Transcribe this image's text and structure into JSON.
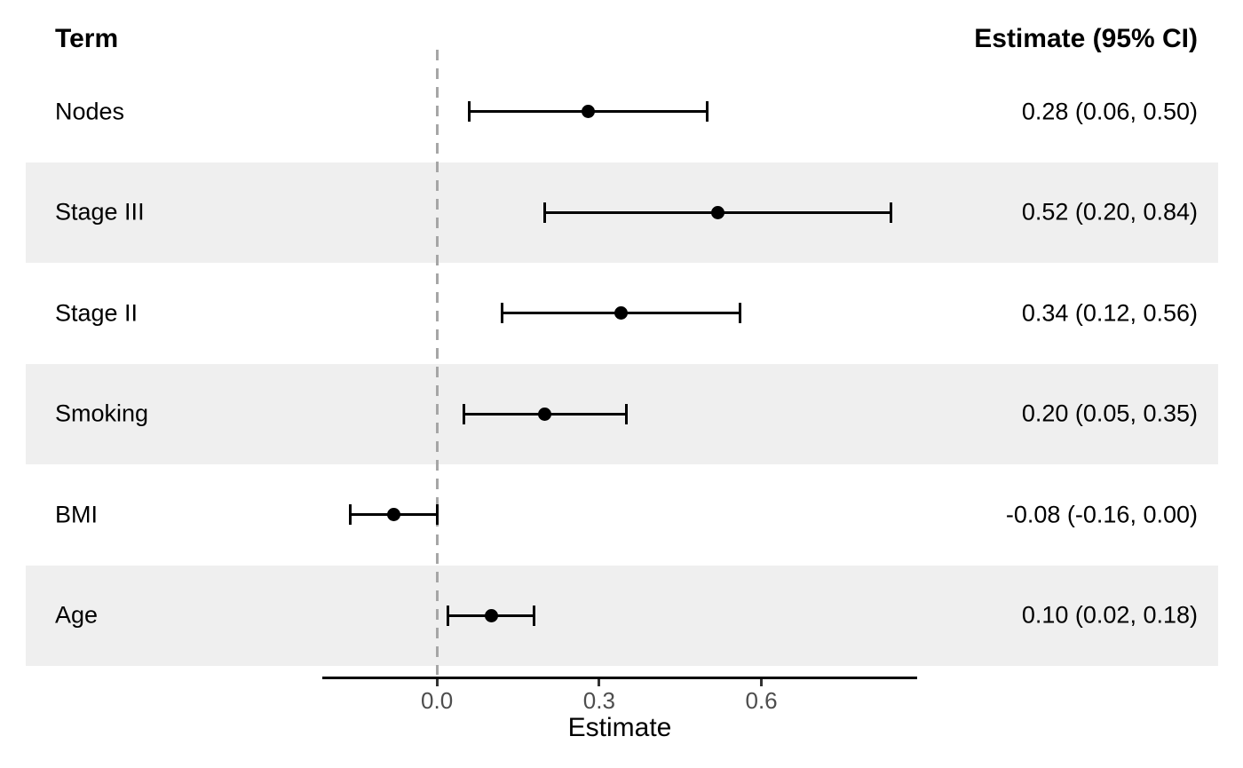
{
  "chart_data": {
    "type": "scatter",
    "variant": "forest-plot",
    "title": "",
    "columns": {
      "term_header": "Term",
      "estimate_header": "Estimate (95% CI)"
    },
    "rows": [
      {
        "term": "Nodes",
        "estimate": 0.28,
        "ci_low": 0.06,
        "ci_high": 0.5,
        "label": "0.28 (0.06, 0.50)",
        "shaded": false
      },
      {
        "term": "Stage III",
        "estimate": 0.52,
        "ci_low": 0.2,
        "ci_high": 0.84,
        "label": "0.52 (0.20, 0.84)",
        "shaded": true
      },
      {
        "term": "Stage II",
        "estimate": 0.34,
        "ci_low": 0.12,
        "ci_high": 0.56,
        "label": "0.34 (0.12, 0.56)",
        "shaded": false
      },
      {
        "term": "Smoking",
        "estimate": 0.2,
        "ci_low": 0.05,
        "ci_high": 0.35,
        "label": "0.20 (0.05, 0.35)",
        "shaded": true
      },
      {
        "term": "BMI",
        "estimate": -0.08,
        "ci_low": -0.16,
        "ci_high": 0.0,
        "label": "-0.08 (-0.16, 0.00)",
        "shaded": false
      },
      {
        "term": "Age",
        "estimate": 0.1,
        "ci_low": 0.02,
        "ci_high": 0.18,
        "label": "0.10 (0.02, 0.18)",
        "shaded": true
      }
    ],
    "xlabel": "Estimate",
    "x_ticks": [
      {
        "value": 0.0,
        "label": "0.0"
      },
      {
        "value": 0.3,
        "label": "0.3"
      },
      {
        "value": 0.6,
        "label": "0.6"
      }
    ],
    "xlim": [
      -0.212,
      0.888
    ],
    "reference_line": 0.0,
    "grid": "off",
    "legend": "none",
    "colors": {
      "background": "#FFFFFF",
      "stripe": "#EFEFEF",
      "reference_line": "#A6A6A6",
      "marker": "#000000",
      "ci": "#000000",
      "axis_line": "#000000",
      "tick": "#333333",
      "tick_label": "#4D4D4D",
      "text": "#000000"
    }
  }
}
